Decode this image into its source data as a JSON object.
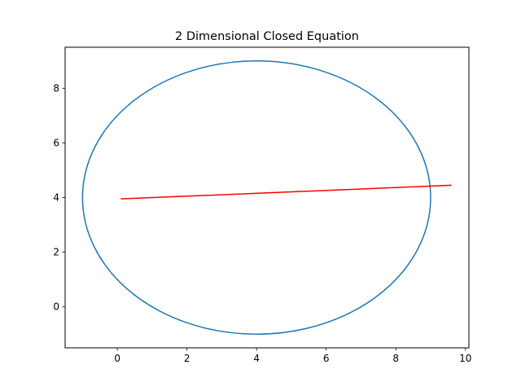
{
  "chart_data": {
    "type": "line",
    "title": "2 Dimensional Closed Equation",
    "xlabel": "",
    "ylabel": "",
    "xlim": [
      -1.5,
      10.1
    ],
    "ylim": [
      -1.5,
      9.5
    ],
    "x_ticks": [
      0,
      2,
      4,
      6,
      8,
      10
    ],
    "y_ticks": [
      0,
      2,
      4,
      6,
      8
    ],
    "grid": false,
    "series": [
      {
        "kind": "ellipse",
        "center": [
          4,
          4
        ],
        "radius_x": 5,
        "radius_y": 5,
        "color": "#1f77b4"
      },
      {
        "kind": "segment",
        "x": [
          0.1,
          9.6
        ],
        "y": [
          3.95,
          4.45
        ],
        "color": "#ff0000"
      }
    ]
  }
}
